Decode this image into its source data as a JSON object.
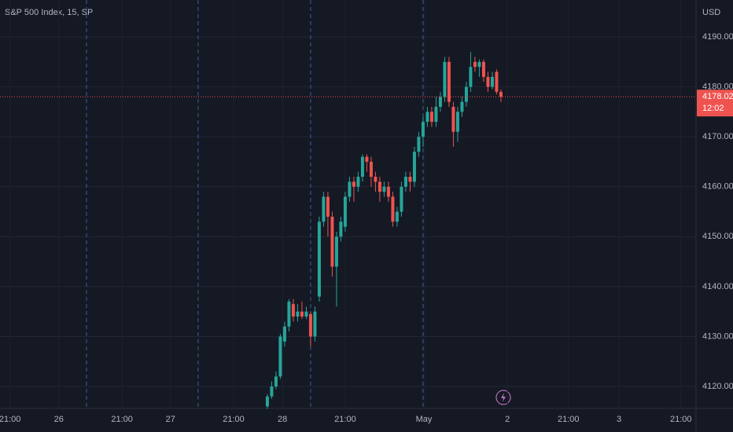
{
  "chart_data": {
    "type": "candlestick",
    "title": "S&P 500 Index, 15, SP",
    "currency": "USD",
    "x": [
      0,
      1,
      2,
      3,
      4,
      5,
      6,
      7,
      8,
      9,
      10,
      11,
      12,
      13,
      14,
      15,
      16,
      17,
      18,
      19,
      20,
      21,
      22,
      23,
      24,
      25,
      26,
      27,
      28,
      29,
      30,
      31,
      32,
      33,
      34,
      35,
      36,
      37,
      38,
      39,
      40,
      41,
      42,
      43,
      44,
      45,
      46,
      47,
      48,
      49,
      50,
      51,
      52,
      53,
      54
    ],
    "open": [
      4116,
      4118,
      4120,
      4122,
      4129,
      4132,
      4136.5,
      4134,
      4135,
      4134,
      4134.5,
      4130,
      4138,
      4153,
      4158,
      4154,
      4144,
      4150,
      4152,
      4158,
      4161,
      4160,
      4162,
      4166,
      4165,
      4162,
      4161,
      4159,
      4160,
      4158,
      4153,
      4155,
      4160,
      4162,
      4161,
      4167,
      4170,
      4173,
      4175,
      4173,
      4176,
      4178,
      4185,
      4176,
      4171,
      4175,
      4177,
      4180,
      4185,
      4184,
      4185,
      4182,
      4180,
      4183,
      4179
    ],
    "high": [
      4118.5,
      4121,
      4123,
      4130.5,
      4133,
      4137.5,
      4137.5,
      4136.5,
      4137,
      4136,
      4135,
      4136,
      4154,
      4159,
      4159,
      4155,
      4151,
      4154,
      4159,
      4162,
      4162,
      4163,
      4166.5,
      4166.5,
      4166,
      4163,
      4162,
      4161,
      4161,
      4159,
      4156,
      4161,
      4163,
      4163,
      4168,
      4171,
      4174,
      4176,
      4176,
      4178,
      4179,
      4186,
      4186,
      4177,
      4176,
      4178,
      4181,
      4187,
      4186,
      4185.5,
      4185.5,
      4183,
      4183,
      4183.5,
      4179.5
    ],
    "low": [
      4115.5,
      4117.5,
      4119.5,
      4121.5,
      4128,
      4131,
      4133,
      4133,
      4133.5,
      4133.5,
      4128,
      4129,
      4137,
      4152,
      4150,
      4142,
      4136,
      4149,
      4151,
      4157,
      4157,
      4159,
      4161,
      4163,
      4160,
      4159,
      4157,
      4158,
      4157,
      4152,
      4152,
      4154,
      4159,
      4159,
      4160,
      4166,
      4168,
      4172,
      4172,
      4172,
      4175,
      4177,
      4176,
      4168,
      4169,
      4174,
      4176,
      4179,
      4183,
      4182,
      4181,
      4179,
      4179.5,
      4178.5,
      4177
    ],
    "close": [
      4118,
      4120,
      4122,
      4130,
      4132,
      4137,
      4134,
      4135,
      4134,
      4135,
      4130,
      4135,
      4153,
      4158,
      4154,
      4144,
      4150,
      4153,
      4158,
      4161,
      4160,
      4162,
      4166,
      4165,
      4162,
      4161,
      4159,
      4160,
      4158,
      4153,
      4155,
      4160,
      4162,
      4161,
      4167,
      4170,
      4173,
      4175,
      4173,
      4176,
      4178,
      4185,
      4177,
      4171,
      4175,
      4177,
      4180,
      4184,
      4184,
      4185,
      4182,
      4180,
      4182,
      4179,
      4178.02
    ],
    "up_color": "#26a69a",
    "down_color": "#ef5350",
    "ylim": [
      4115.6,
      4197.4
    ],
    "yticks": [
      {
        "value": 4120,
        "label": "4120.00"
      },
      {
        "value": 4130,
        "label": "4130.00"
      },
      {
        "value": 4140,
        "label": "4140.00"
      },
      {
        "value": 4150,
        "label": "4150.00"
      },
      {
        "value": 4160,
        "label": "4160.00"
      },
      {
        "value": 4170,
        "label": "4170.00"
      },
      {
        "value": 4180,
        "label": "4180.00"
      },
      {
        "value": 4190,
        "label": "4190.00"
      }
    ],
    "xlim": [
      -61.8,
      99.1
    ],
    "xticks": [
      {
        "value": -59.5,
        "label": "21:00"
      },
      {
        "value": -48.2,
        "label": "26"
      },
      {
        "value": -33.6,
        "label": "21:00"
      },
      {
        "value": -22.4,
        "label": "27"
      },
      {
        "value": -7.8,
        "label": "21:00"
      },
      {
        "value": 3.5,
        "label": "28"
      },
      {
        "value": 18,
        "label": "21:00"
      },
      {
        "value": 36.2,
        "label": "May"
      },
      {
        "value": 55.5,
        "label": "2"
      },
      {
        "value": 69.6,
        "label": "21:00"
      },
      {
        "value": 81.3,
        "label": "3"
      },
      {
        "value": 95.6,
        "label": "21:00"
      }
    ],
    "session_breaks": [
      -41.8,
      -16,
      10,
      36
    ],
    "last_price": 4178.02,
    "countdown": "12:02",
    "grid": true
  }
}
